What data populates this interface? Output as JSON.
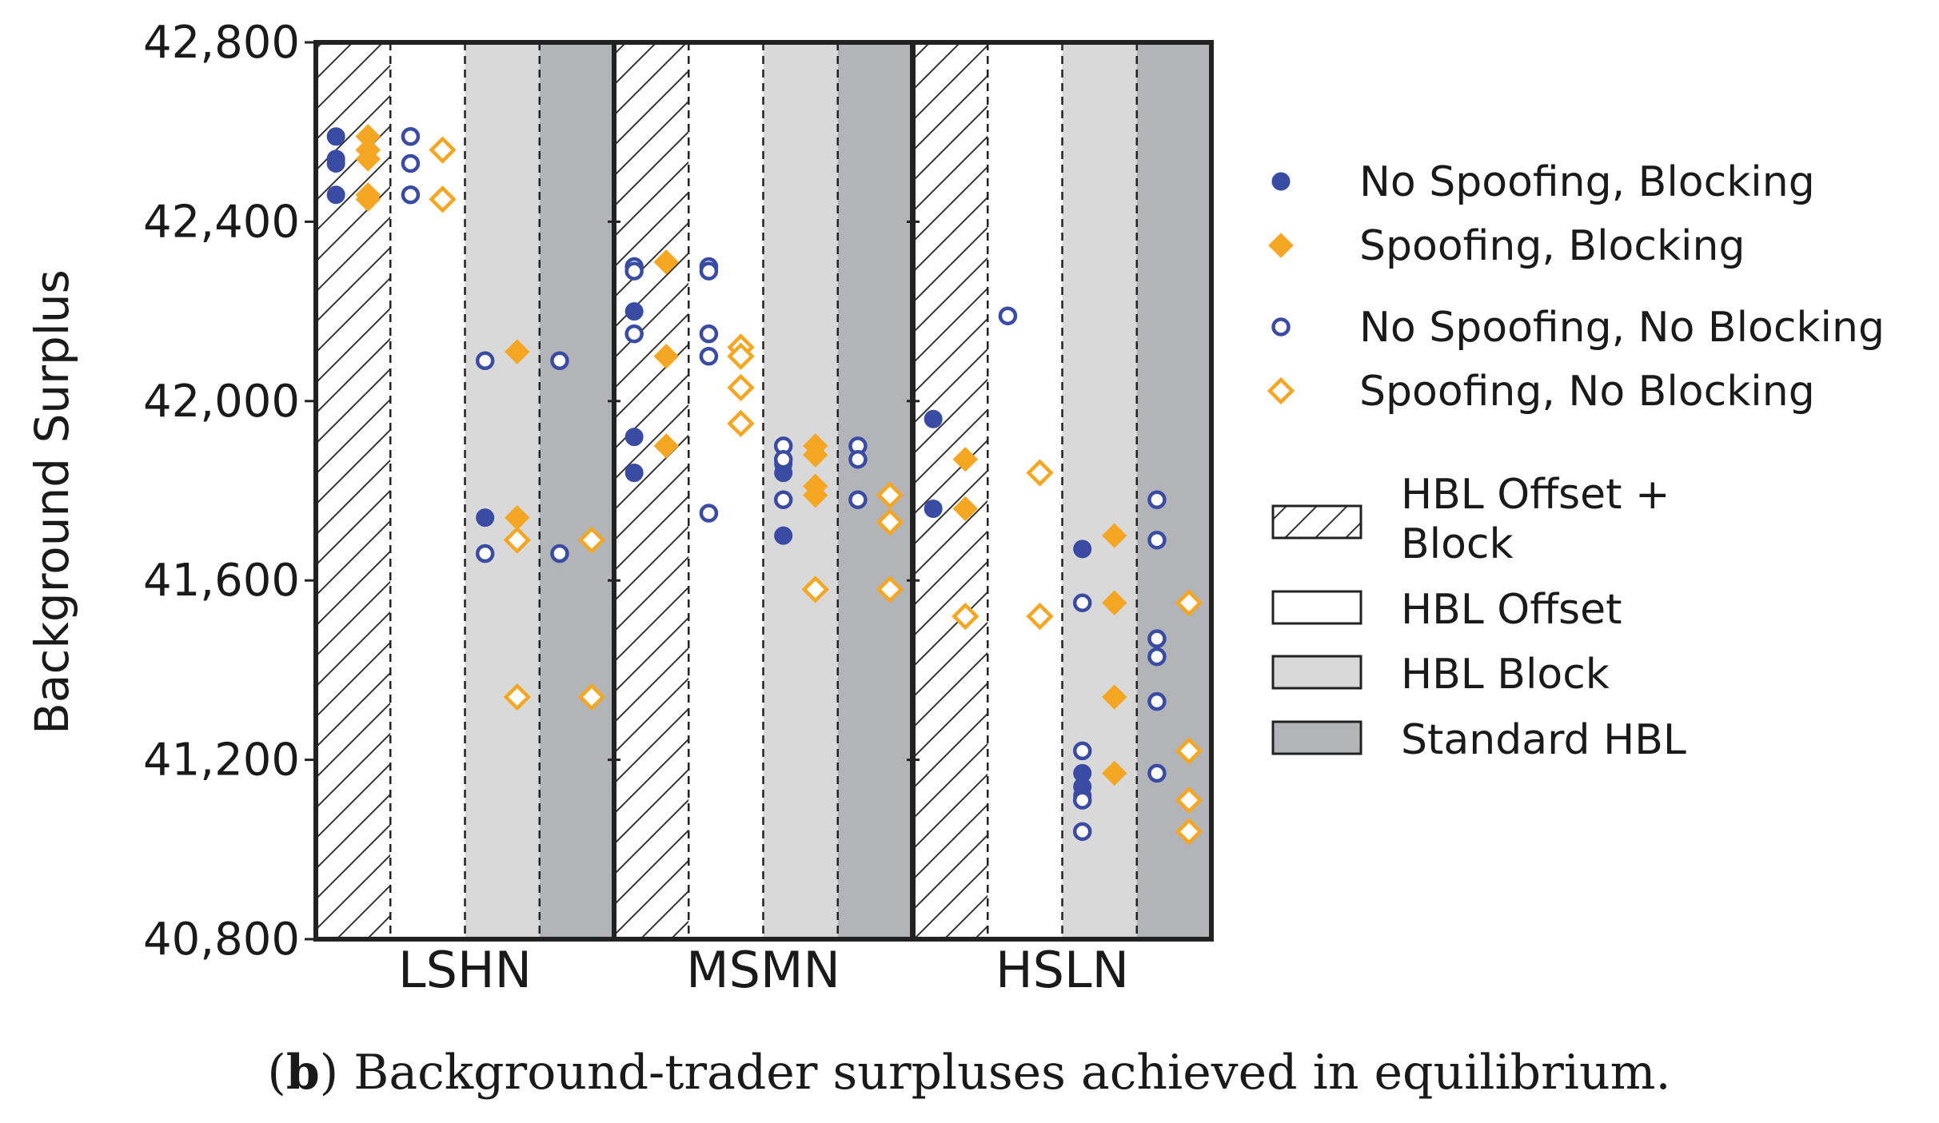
{
  "caption": {
    "prefix": "(",
    "letter": "b",
    "text": ") Background-trader surpluses achieved in equilibrium."
  },
  "colors": {
    "blue": "#3a4ba3",
    "orange": "#f5a623",
    "light_gray": "#d9d9d9",
    "dark_gray": "#b3b4b7",
    "frame": "#222222"
  },
  "chart_data": {
    "type": "scatter",
    "title": "",
    "ylabel": "Background Surplus",
    "xlabel": "",
    "ylim": [
      40800,
      42800
    ],
    "yticks": [
      40800,
      41200,
      41600,
      42000,
      42400,
      42800
    ],
    "ytick_labels": [
      "40,800",
      "41,200",
      "41,600",
      "42,000",
      "42,400",
      "42,800"
    ],
    "grid": false,
    "legend_position": "right",
    "groups": [
      "LSHN",
      "MSMN",
      "HSLN"
    ],
    "conditions": [
      {
        "name": "HBL Offset + Block",
        "fill": "hatch"
      },
      {
        "name": "HBL Offset",
        "fill": "white"
      },
      {
        "name": "HBL Block",
        "fill": "light_gray"
      },
      {
        "name": "Standard HBL",
        "fill": "dark_gray"
      }
    ],
    "series": [
      {
        "name": "No Spoofing, Blocking",
        "marker": "circle",
        "filled": true,
        "color": "blue"
      },
      {
        "name": "Spoofing, Blocking",
        "marker": "diamond",
        "filled": true,
        "color": "orange"
      },
      {
        "name": "No Spoofing, No Blocking",
        "marker": "circle",
        "filled": false,
        "color": "blue"
      },
      {
        "name": "Spoofing, No Blocking",
        "marker": "diamond",
        "filled": false,
        "color": "orange"
      }
    ],
    "points": [
      {
        "group": "LSHN",
        "condition": "HBL Offset + Block",
        "series": "No Spoofing, Blocking",
        "values": [
          42590,
          42540,
          42530,
          42460
        ]
      },
      {
        "group": "LSHN",
        "condition": "HBL Offset + Block",
        "series": "Spoofing, Blocking",
        "values": [
          42590,
          42560,
          42540,
          42460,
          42450
        ]
      },
      {
        "group": "LSHN",
        "condition": "HBL Offset",
        "series": "No Spoofing, No Blocking",
        "values": [
          42590,
          42530,
          42460
        ]
      },
      {
        "group": "LSHN",
        "condition": "HBL Offset",
        "series": "Spoofing, No Blocking",
        "values": [
          42560,
          42450
        ]
      },
      {
        "group": "LSHN",
        "condition": "HBL Block",
        "series": "No Spoofing, Blocking",
        "values": [
          41740
        ]
      },
      {
        "group": "LSHN",
        "condition": "HBL Block",
        "series": "No Spoofing, No Blocking",
        "values": [
          42090,
          41660
        ]
      },
      {
        "group": "LSHN",
        "condition": "HBL Block",
        "series": "Spoofing, Blocking",
        "values": [
          42110,
          41740
        ]
      },
      {
        "group": "LSHN",
        "condition": "HBL Block",
        "series": "Spoofing, No Blocking",
        "values": [
          41690,
          41340
        ]
      },
      {
        "group": "LSHN",
        "condition": "Standard HBL",
        "series": "No Spoofing, No Blocking",
        "values": [
          42090,
          41660
        ]
      },
      {
        "group": "LSHN",
        "condition": "Standard HBL",
        "series": "Spoofing, No Blocking",
        "values": [
          41690,
          41340
        ]
      },
      {
        "group": "MSMN",
        "condition": "HBL Offset + Block",
        "series": "No Spoofing, Blocking",
        "values": [
          42200,
          41920,
          41840
        ]
      },
      {
        "group": "MSMN",
        "condition": "HBL Offset + Block",
        "series": "No Spoofing, No Blocking",
        "values": [
          42300,
          42290,
          42150
        ]
      },
      {
        "group": "MSMN",
        "condition": "HBL Offset + Block",
        "series": "Spoofing, Blocking",
        "values": [
          42310,
          42100,
          41900
        ]
      },
      {
        "group": "MSMN",
        "condition": "HBL Offset",
        "series": "No Spoofing, No Blocking",
        "values": [
          42300,
          42290,
          42150,
          42100,
          41750
        ]
      },
      {
        "group": "MSMN",
        "condition": "HBL Offset",
        "series": "Spoofing, No Blocking",
        "values": [
          42120,
          42100,
          42030,
          41950
        ]
      },
      {
        "group": "MSMN",
        "condition": "HBL Block",
        "series": "No Spoofing, Blocking",
        "values": [
          41860,
          41840,
          41700
        ]
      },
      {
        "group": "MSMN",
        "condition": "HBL Block",
        "series": "No Spoofing, No Blocking",
        "values": [
          41900,
          41870,
          41780
        ]
      },
      {
        "group": "MSMN",
        "condition": "HBL Block",
        "series": "Spoofing, Blocking",
        "values": [
          41900,
          41880,
          41810,
          41790
        ]
      },
      {
        "group": "MSMN",
        "condition": "HBL Block",
        "series": "Spoofing, No Blocking",
        "values": [
          41580
        ]
      },
      {
        "group": "MSMN",
        "condition": "Standard HBL",
        "series": "No Spoofing, No Blocking",
        "values": [
          41900,
          41870,
          41780
        ]
      },
      {
        "group": "MSMN",
        "condition": "Standard HBL",
        "series": "Spoofing, No Blocking",
        "values": [
          41790,
          41730,
          41580
        ]
      },
      {
        "group": "HSLN",
        "condition": "HBL Offset + Block",
        "series": "No Spoofing, Blocking",
        "values": [
          41960,
          41760
        ]
      },
      {
        "group": "HSLN",
        "condition": "HBL Offset + Block",
        "series": "Spoofing, Blocking",
        "values": [
          41870,
          41760
        ]
      },
      {
        "group": "HSLN",
        "condition": "HBL Offset + Block",
        "series": "Spoofing, No Blocking",
        "values": [
          41520
        ]
      },
      {
        "group": "HSLN",
        "condition": "HBL Offset",
        "series": "No Spoofing, No Blocking",
        "values": [
          42190
        ]
      },
      {
        "group": "HSLN",
        "condition": "HBL Offset",
        "series": "Spoofing, No Blocking",
        "values": [
          41840,
          41520
        ]
      },
      {
        "group": "HSLN",
        "condition": "HBL Block",
        "series": "No Spoofing, Blocking",
        "values": [
          41670,
          41170,
          41140,
          41120
        ]
      },
      {
        "group": "HSLN",
        "condition": "HBL Block",
        "series": "No Spoofing, No Blocking",
        "values": [
          41550,
          41220,
          41110,
          41040
        ]
      },
      {
        "group": "HSLN",
        "condition": "HBL Block",
        "series": "Spoofing, Blocking",
        "values": [
          41700,
          41550,
          41340,
          41170
        ]
      },
      {
        "group": "HSLN",
        "condition": "Standard HBL",
        "series": "No Spoofing, No Blocking",
        "values": [
          41780,
          41690,
          41470,
          41430,
          41330,
          41170
        ]
      },
      {
        "group": "HSLN",
        "condition": "Standard HBL",
        "series": "Spoofing, No Blocking",
        "values": [
          41550,
          41220,
          41110,
          41040
        ]
      }
    ]
  }
}
